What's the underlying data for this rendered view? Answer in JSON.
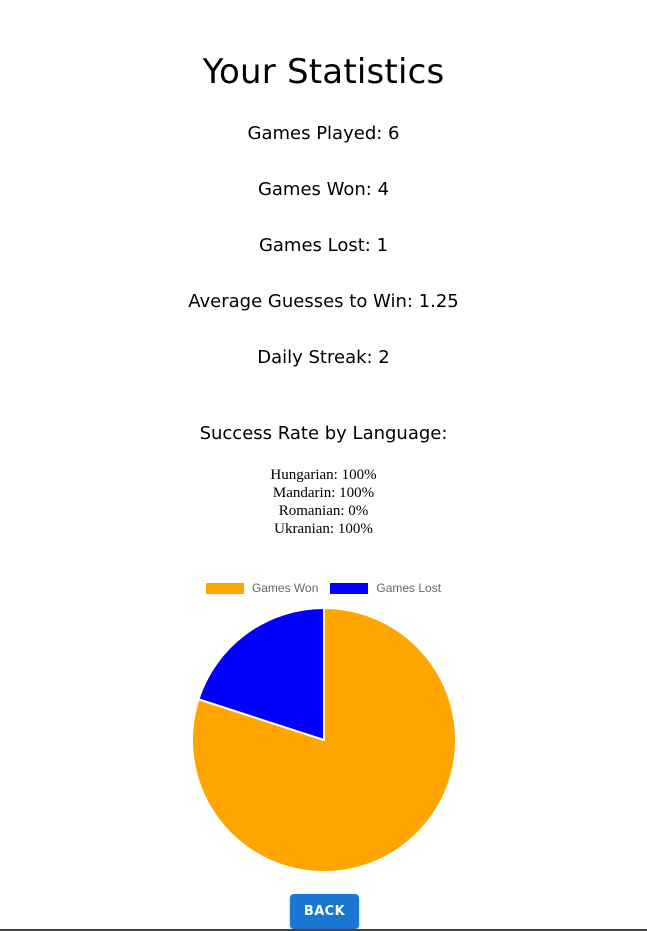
{
  "title": "Your Statistics",
  "stats": {
    "played": "Games Played: 6",
    "won": "Games Won: 4",
    "lost": "Games Lost: 1",
    "avg_guesses": "Average Guesses to Win: 1.25",
    "streak": "Daily Streak: 2"
  },
  "success_rate": {
    "heading": "Success Rate by Language:",
    "languages": [
      "Hungarian: 100%",
      "Mandarin: 100%",
      "Romanian: 0%",
      "Ukranian: 100%"
    ]
  },
  "chart_data": {
    "type": "pie",
    "categories": [
      "Games Won",
      "Games Lost"
    ],
    "values": [
      4,
      1
    ],
    "colors": [
      "#FFA500",
      "#0000FF"
    ],
    "legend_position": "top"
  },
  "back_button": "BACK"
}
